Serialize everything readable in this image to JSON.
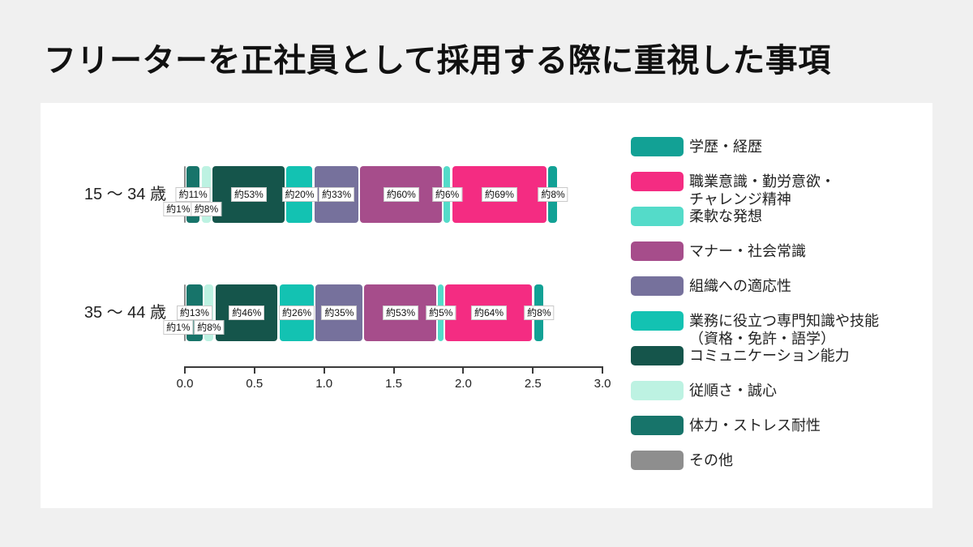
{
  "page": {
    "title": "フリーターを正社員として採用する際に重視した事項",
    "background_color": "#f0f0f0",
    "card_color": "#ffffff"
  },
  "chart_data": {
    "type": "bar",
    "variant": "horizontal-stacked",
    "title": "フリーターを正社員として採用する際に重視した事項",
    "categories": [
      "15 ～ 34 歳",
      "35 ～ 44 歳"
    ],
    "xlim": [
      0.0,
      3.0
    ],
    "x_ticks": [
      "0.0",
      "0.5",
      "1.0",
      "1.5",
      "2.0",
      "2.5",
      "3.0"
    ],
    "grid": false,
    "legend_position": "right",
    "stack_order_note": "segments stack from the axis origin in reverse legend order (その他 first, 学歴・経歴 last)",
    "series": [
      {
        "name": "学歴・経歴",
        "legend_lines": [
          "学歴・経歴"
        ],
        "color": "#12a195",
        "values": [
          0.08,
          0.08
        ],
        "value_labels": [
          "約8%",
          "約8%"
        ],
        "label_row": "upper"
      },
      {
        "name": "職業意識・勤労意欲・チャレンジ精神",
        "legend_lines": [
          "職業意識・勤労意欲・",
          "チャレンジ精神"
        ],
        "color": "#f42c82",
        "values": [
          0.69,
          0.64
        ],
        "value_labels": [
          "約69%",
          "約64%"
        ],
        "label_row": "upper"
      },
      {
        "name": "柔軟な発想",
        "legend_lines": [
          "柔軟な発想"
        ],
        "color": "#54dbc9",
        "values": [
          0.06,
          0.05
        ],
        "value_labels": [
          "約6%",
          "約5%"
        ],
        "label_row": "upper"
      },
      {
        "name": "マナー・社会常識",
        "legend_lines": [
          "マナー・社会常識"
        ],
        "color": "#a64d8b",
        "values": [
          0.6,
          0.53
        ],
        "value_labels": [
          "約60%",
          "約53%"
        ],
        "label_row": "upper"
      },
      {
        "name": "組織への適応性",
        "legend_lines": [
          "組織への適応性"
        ],
        "color": "#76719c",
        "values": [
          0.33,
          0.35
        ],
        "value_labels": [
          "約33%",
          "約35%"
        ],
        "label_row": "upper"
      },
      {
        "name": "業務に役立つ専門知識や技能（資格・免許・語学）",
        "legend_lines": [
          "業務に役立つ専門知識や技能",
          "（資格・免許・語学）"
        ],
        "color": "#13c2b2",
        "values": [
          0.2,
          0.26
        ],
        "value_labels": [
          "約20%",
          "約26%"
        ],
        "label_row": "upper"
      },
      {
        "name": "コミュニケーション能力",
        "legend_lines": [
          "コミュニケーション能力"
        ],
        "color": "#15554b",
        "values": [
          0.53,
          0.46
        ],
        "value_labels": [
          "約53%",
          "約46%"
        ],
        "label_row": "upper"
      },
      {
        "name": "従順さ・誠心",
        "legend_lines": [
          "従順さ・誠心"
        ],
        "color": "#bdf2e2",
        "values": [
          0.08,
          0.08
        ],
        "value_labels": [
          "約8%",
          "約8%"
        ],
        "label_row": "lower"
      },
      {
        "name": "体力・ストレス耐性",
        "legend_lines": [
          "体力・ストレス耐性"
        ],
        "color": "#17746a",
        "values": [
          0.11,
          0.13
        ],
        "value_labels": [
          "約11%",
          "約13%"
        ],
        "label_row": "upper"
      },
      {
        "name": "その他",
        "legend_lines": [
          "その他"
        ],
        "color": "#8e8e8e",
        "values": [
          0.01,
          0.01
        ],
        "value_labels": [
          "約1%",
          "約1%"
        ],
        "label_row": "lower"
      }
    ]
  }
}
